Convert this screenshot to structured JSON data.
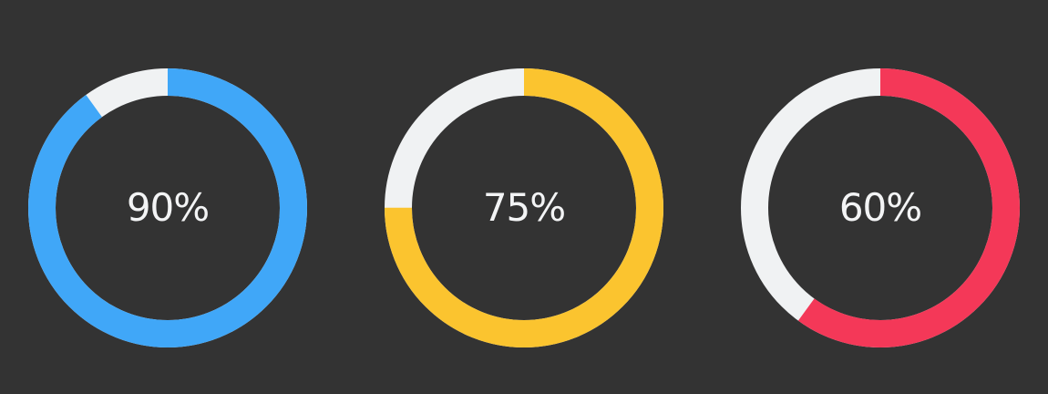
{
  "colors": {
    "background": "#333333",
    "track": "#f0f2f3"
  },
  "gauges": [
    {
      "label": "90%",
      "value": 0.9,
      "color": "#40a7f8"
    },
    {
      "label": "75%",
      "value": 0.75,
      "color": "#fbc42f"
    },
    {
      "label": "60%",
      "value": 0.6,
      "color": "#f43858"
    }
  ]
}
